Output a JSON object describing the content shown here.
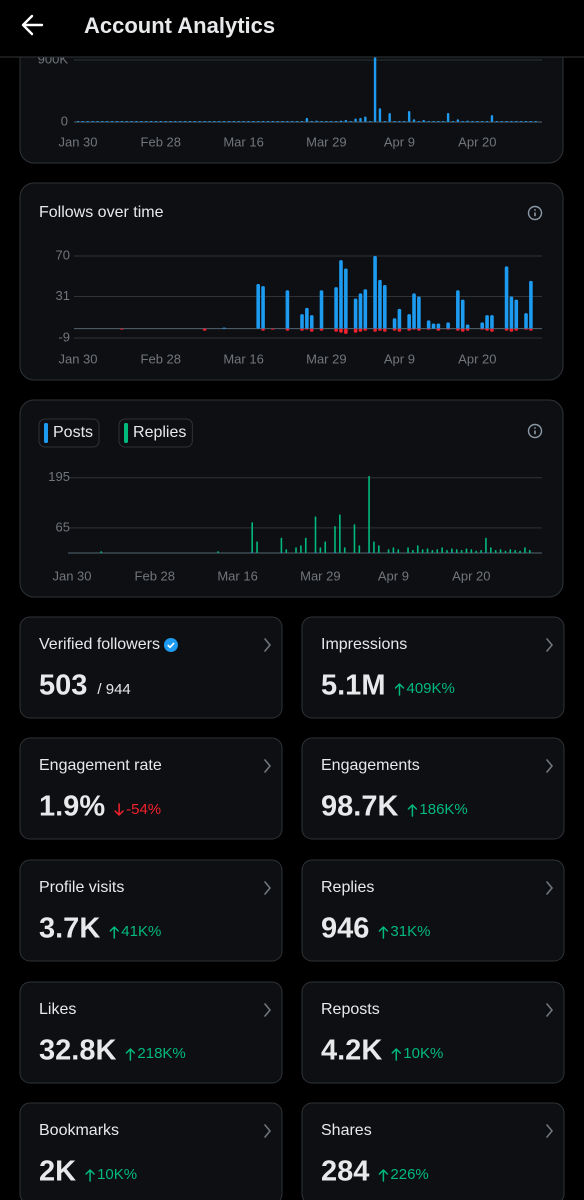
{
  "header": {
    "title": "Account Analytics"
  },
  "charts": [
    {
      "type": "bar",
      "categories": [
        "Jan 30",
        null,
        null,
        null,
        null,
        null,
        null,
        null,
        null,
        null,
        null,
        null,
        null,
        null,
        null,
        null,
        null,
        "Feb 28",
        null,
        null,
        null,
        null,
        null,
        null,
        null,
        null,
        null,
        null,
        null,
        null,
        null,
        null,
        null,
        null,
        "Mar 16",
        null,
        null,
        null,
        null,
        null,
        null,
        null,
        null,
        null,
        null,
        null,
        null,
        null,
        null,
        null,
        null,
        "Mar 29",
        null,
        null,
        null,
        null,
        null,
        null,
        null,
        null,
        null,
        null,
        null,
        null,
        null,
        null,
        "Apr 9",
        null,
        null,
        null,
        null,
        null,
        null,
        null,
        null,
        null,
        null,
        null,
        null,
        null,
        null,
        null,
        "Apr 20",
        null,
        null,
        null,
        null,
        null,
        null,
        null,
        null,
        null,
        null,
        null,
        null
      ],
      "series": [
        {
          "color": "#1d9bf0",
          "values": [
            8000,
            8000,
            8000,
            8000,
            8000,
            8000,
            8000,
            8000,
            8000,
            8000,
            8000,
            8000,
            8000,
            8000,
            8000,
            8000,
            8000,
            8000,
            8000,
            8000,
            8000,
            8000,
            8000,
            8000,
            8000,
            8000,
            8000,
            8000,
            8000,
            8000,
            8000,
            8000,
            8000,
            8000,
            8000,
            8000,
            8000,
            8000,
            8000,
            8000,
            8000,
            8000,
            8000,
            8000,
            8000,
            8000,
            8000,
            60000,
            8000,
            20000,
            8000,
            8000,
            8000,
            8000,
            20000,
            30000,
            8000,
            50000,
            60000,
            80000,
            8000,
            1000000,
            200000,
            8000,
            130000,
            8000,
            8000,
            8000,
            160000,
            40000,
            8000,
            30000,
            8000,
            8000,
            8000,
            8000,
            130000,
            8000,
            40000,
            8000,
            20000,
            8000,
            8000,
            8000,
            8000,
            100000,
            8000,
            8000,
            8000,
            8000,
            8000,
            8000,
            8000,
            8000,
            8000
          ]
        }
      ],
      "ylim": [
        0,
        1000000
      ],
      "yticks": [
        0,
        {
          "value": 900000,
          "label": "900K"
        }
      ]
    },
    {
      "type": "bar",
      "title": "Follows over time",
      "categories": [
        "Jan 30",
        null,
        null,
        null,
        null,
        null,
        null,
        null,
        null,
        null,
        null,
        null,
        null,
        null,
        null,
        null,
        null,
        "Feb 28",
        null,
        null,
        null,
        null,
        null,
        null,
        null,
        null,
        null,
        null,
        null,
        null,
        null,
        null,
        null,
        null,
        "Mar 16",
        null,
        null,
        null,
        null,
        null,
        null,
        null,
        null,
        null,
        null,
        null,
        null,
        null,
        null,
        null,
        null,
        "Mar 29",
        null,
        null,
        null,
        null,
        null,
        null,
        null,
        null,
        null,
        null,
        null,
        null,
        null,
        null,
        "Apr 9",
        null,
        null,
        null,
        null,
        null,
        null,
        null,
        null,
        null,
        null,
        null,
        null,
        null,
        null,
        null,
        "Apr 20",
        null,
        null,
        null,
        null,
        null,
        null,
        null,
        null,
        null,
        null,
        null,
        null
      ],
      "series": [
        {
          "color": "#1d9bf0",
          "values": [
            0,
            0,
            0,
            0,
            0,
            0,
            0,
            0,
            0,
            0,
            0,
            0,
            0,
            0,
            0,
            0,
            0,
            0,
            0,
            0,
            0,
            0,
            0,
            0,
            0,
            0,
            0,
            0,
            0,
            0,
            1,
            0,
            0,
            0,
            0,
            0,
            0,
            43,
            41,
            0,
            0,
            0,
            0,
            37,
            0,
            0,
            14,
            20,
            13,
            0,
            37,
            0,
            0,
            40,
            66,
            58,
            0,
            29,
            34,
            38,
            0,
            70,
            47,
            42,
            0,
            10,
            19,
            0,
            14,
            34,
            31,
            0,
            8,
            5,
            5,
            0,
            6,
            0,
            37,
            28,
            4,
            0,
            0,
            6,
            13,
            13,
            0,
            0,
            60,
            31,
            28,
            0,
            15,
            46,
            0
          ]
        },
        {
          "color": "#f4212e",
          "values": [
            0,
            0,
            0,
            0,
            0,
            0,
            0,
            0,
            0,
            -1,
            0,
            0,
            0,
            0,
            0,
            0,
            0,
            0,
            0,
            0,
            0,
            0,
            0,
            0,
            0,
            0,
            -2,
            0,
            0,
            0,
            0,
            0,
            0,
            0,
            0,
            0,
            0,
            0,
            -2,
            0,
            -1,
            0,
            0,
            -2,
            0,
            0,
            -2,
            -1,
            -3,
            0,
            -2,
            0,
            0,
            -3,
            -4,
            -5,
            0,
            -4,
            -3,
            -2,
            0,
            -3,
            -2,
            -3,
            0,
            -2,
            -3,
            0,
            -2,
            -1,
            -2,
            0,
            -1,
            0,
            -2,
            0,
            -1,
            0,
            -2,
            -3,
            -2,
            0,
            0,
            -1,
            -2,
            -3,
            0,
            0,
            -2,
            -3,
            -2,
            0,
            -1,
            -2,
            0
          ]
        }
      ],
      "ylim": [
        -12,
        75
      ],
      "yticks": [
        -9,
        31,
        70
      ]
    },
    {
      "type": "bar",
      "categories": [
        "Jan 30",
        null,
        null,
        null,
        null,
        null,
        null,
        null,
        null,
        null,
        null,
        null,
        null,
        null,
        null,
        null,
        null,
        "Feb 28",
        null,
        null,
        null,
        null,
        null,
        null,
        null,
        null,
        null,
        null,
        null,
        null,
        null,
        null,
        null,
        null,
        "Mar 16",
        null,
        null,
        null,
        null,
        null,
        null,
        null,
        null,
        null,
        null,
        null,
        null,
        null,
        null,
        null,
        null,
        "Mar 29",
        null,
        null,
        null,
        null,
        null,
        null,
        null,
        null,
        null,
        null,
        null,
        null,
        null,
        null,
        "Apr 9",
        null,
        null,
        null,
        null,
        null,
        null,
        null,
        null,
        null,
        null,
        null,
        null,
        null,
        null,
        null,
        "Apr 20",
        null,
        null,
        null,
        null,
        null,
        null,
        null,
        null,
        null,
        null,
        null,
        null
      ],
      "series": [
        {
          "name": "Replies",
          "color": "#00ba7c",
          "values": [
            0,
            0,
            0,
            0,
            0,
            0,
            5,
            0,
            0,
            0,
            0,
            0,
            0,
            0,
            0,
            0,
            0,
            0,
            0,
            0,
            0,
            0,
            0,
            0,
            0,
            0,
            0,
            0,
            0,
            0,
            5,
            0,
            0,
            0,
            0,
            0,
            0,
            80,
            30,
            0,
            0,
            0,
            0,
            40,
            10,
            0,
            15,
            20,
            40,
            0,
            95,
            15,
            30,
            0,
            70,
            100,
            15,
            0,
            75,
            20,
            0,
            200,
            30,
            20,
            0,
            10,
            15,
            10,
            0,
            15,
            8,
            20,
            10,
            12,
            8,
            10,
            15,
            8,
            12,
            10,
            8,
            12,
            10,
            6,
            8,
            40,
            15,
            8,
            10,
            6,
            10,
            8,
            6,
            15,
            8
          ]
        },
        {
          "name": "Posts",
          "color": "#1d9bf0",
          "values": [
            0,
            0,
            0,
            0,
            0,
            0,
            0,
            0,
            0,
            0,
            0,
            0,
            0,
            0,
            0,
            0,
            0,
            0,
            0,
            0,
            0,
            0,
            0,
            0,
            0,
            0,
            0,
            0,
            0,
            0,
            0,
            0,
            0,
            0,
            0,
            0,
            0,
            3,
            0,
            0,
            0,
            0,
            0,
            2,
            0,
            0,
            0,
            0,
            0,
            0,
            3,
            0,
            0,
            0,
            2,
            0,
            0,
            0,
            0,
            0,
            0,
            3,
            0,
            0,
            0,
            0,
            2,
            0,
            0,
            0,
            0,
            0,
            0,
            0,
            0,
            0,
            0,
            0,
            2,
            0,
            0,
            0,
            0,
            0,
            0,
            2,
            0,
            0,
            0,
            0,
            0,
            0,
            0,
            0,
            0
          ]
        }
      ],
      "legend_order": [
        "Posts",
        "Replies"
      ],
      "ylim": [
        0,
        210
      ],
      "yticks": [
        65,
        195
      ]
    }
  ],
  "stats": [
    {
      "label": "Verified followers",
      "value": "503",
      "total": "/ 944",
      "verified": true
    },
    {
      "label": "Impressions",
      "value": "5.1M",
      "change": "409K%",
      "trend": "up"
    },
    {
      "label": "Engagement rate",
      "value": "1.9%",
      "change": "-54%",
      "trend": "down"
    },
    {
      "label": "Engagements",
      "value": "98.7K",
      "change": "186K%",
      "trend": "up"
    },
    {
      "label": "Profile visits",
      "value": "3.7K",
      "change": "41K%",
      "trend": "up"
    },
    {
      "label": "Replies",
      "value": "946",
      "change": "31K%",
      "trend": "up"
    },
    {
      "label": "Likes",
      "value": "32.8K",
      "change": "218K%",
      "trend": "up"
    },
    {
      "label": "Reposts",
      "value": "4.2K",
      "change": "10K%",
      "trend": "up"
    },
    {
      "label": "Bookmarks",
      "value": "2K",
      "change": "10K%",
      "trend": "up"
    },
    {
      "label": "Shares",
      "value": "284",
      "change": "226%",
      "trend": "up"
    }
  ]
}
